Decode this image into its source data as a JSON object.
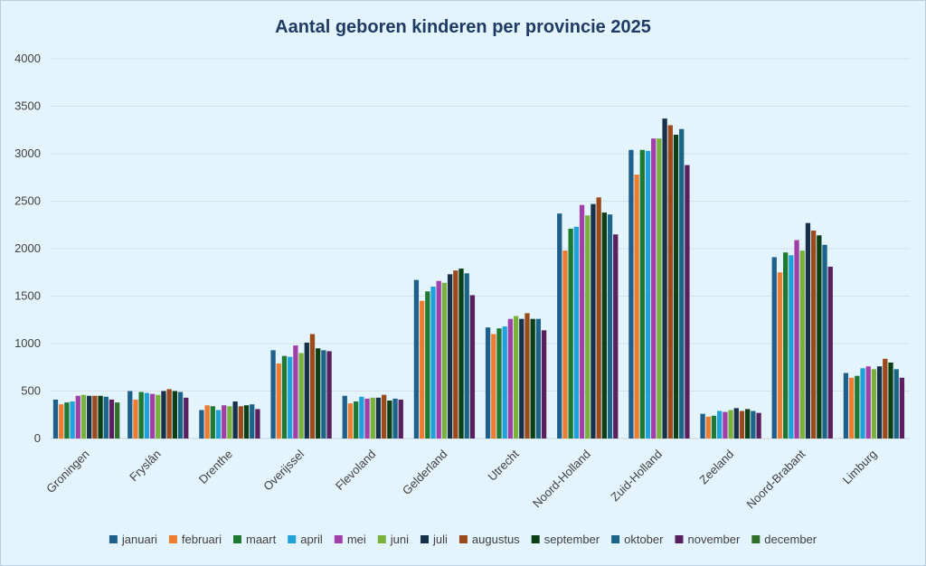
{
  "chart_data": {
    "type": "bar",
    "title": "Aantal geboren kinderen per provincie 2025",
    "xlabel": "",
    "ylabel": "",
    "ylim": [
      0,
      4000
    ],
    "yticks": [
      0,
      500,
      1000,
      1500,
      2000,
      2500,
      3000,
      3500,
      4000
    ],
    "grid": true,
    "legend_position": "bottom",
    "categories": [
      "Groningen",
      "Fryslân",
      "Drenthe",
      "Overijssel",
      "Flevoland",
      "Gelderland",
      "Utrecht",
      "Noord-Holland",
      "Zuid-Holland",
      "Zeeland",
      "Noord-Brabant",
      "Limburg"
    ],
    "series": [
      {
        "name": "januari",
        "color": "#1f5f8b",
        "values": [
          410,
          500,
          300,
          930,
          450,
          1670,
          1170,
          2370,
          3040,
          260,
          1910,
          690
        ]
      },
      {
        "name": "februari",
        "color": "#ec7c30",
        "values": [
          360,
          410,
          350,
          790,
          370,
          1450,
          1100,
          1980,
          2780,
          230,
          1750,
          640
        ]
      },
      {
        "name": "maart",
        "color": "#1e7a32",
        "values": [
          380,
          490,
          340,
          870,
          390,
          1550,
          1160,
          2210,
          3040,
          240,
          1960,
          660
        ]
      },
      {
        "name": "april",
        "color": "#1fa1d9",
        "values": [
          390,
          480,
          300,
          860,
          440,
          1600,
          1180,
          2230,
          3030,
          290,
          1930,
          740
        ]
      },
      {
        "name": "mei",
        "color": "#a23ea8",
        "values": [
          450,
          470,
          350,
          980,
          420,
          1660,
          1260,
          2460,
          3160,
          280,
          2090,
          760
        ]
      },
      {
        "name": "juni",
        "color": "#78b13c",
        "values": [
          460,
          460,
          340,
          900,
          430,
          1640,
          1290,
          2350,
          3160,
          300,
          1980,
          730
        ]
      },
      {
        "name": "juli",
        "color": "#17314b",
        "values": [
          450,
          500,
          390,
          1010,
          430,
          1730,
          1260,
          2470,
          3370,
          320,
          2270,
          760
        ]
      },
      {
        "name": "augustus",
        "color": "#9c4a1b",
        "values": [
          450,
          520,
          340,
          1100,
          460,
          1770,
          1320,
          2540,
          3300,
          290,
          2190,
          840
        ]
      },
      {
        "name": "september",
        "color": "#0d3f17",
        "values": [
          450,
          500,
          350,
          950,
          400,
          1790,
          1260,
          2380,
          3200,
          310,
          2140,
          800
        ]
      },
      {
        "name": "oktober",
        "color": "#1b6589",
        "values": [
          440,
          490,
          360,
          930,
          420,
          1740,
          1260,
          2360,
          3260,
          290,
          2040,
          730
        ]
      },
      {
        "name": "november",
        "color": "#5a1f5e",
        "values": [
          410,
          430,
          310,
          920,
          410,
          1510,
          1140,
          2150,
          2880,
          270,
          1810,
          640
        ]
      },
      {
        "name": "december",
        "color": "#2e6f2a",
        "values": [
          380,
          null,
          null,
          null,
          null,
          null,
          null,
          null,
          null,
          null,
          null,
          null
        ]
      }
    ]
  }
}
